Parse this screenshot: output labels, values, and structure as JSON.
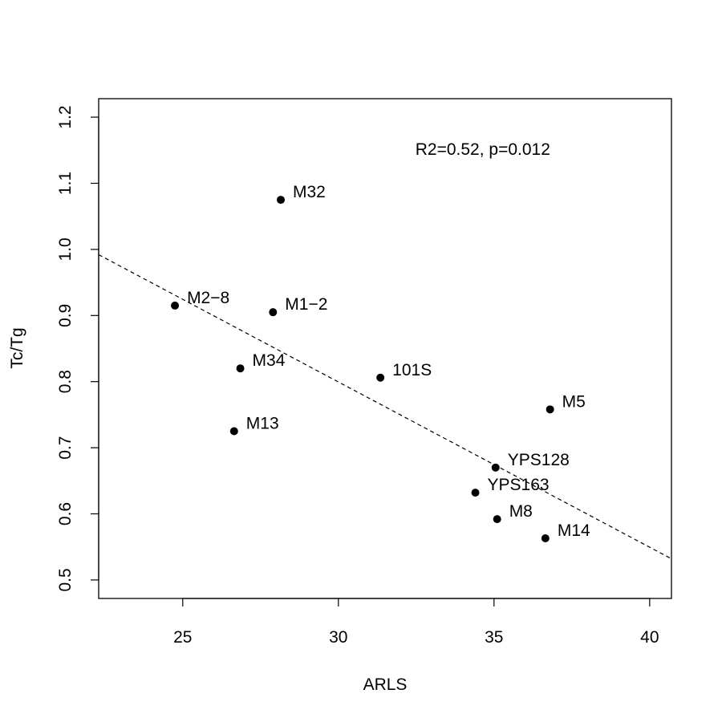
{
  "chart_data": {
    "type": "scatter",
    "title": "",
    "xlabel": "ARLS",
    "ylabel": "Tc/Tg",
    "xlim": [
      22.3,
      40.7
    ],
    "ylim": [
      0.472,
      1.228
    ],
    "xticks": [
      25,
      30,
      35,
      40
    ],
    "yticks": [
      0.5,
      0.6,
      0.7,
      0.8,
      0.9,
      1.0,
      1.1,
      1.2
    ],
    "ytick_labels": [
      "0.5",
      "0.6",
      "0.7",
      "0.8",
      "0.9",
      "1.0",
      "1.1",
      "1.2"
    ],
    "grid": false,
    "annotation": "R2=0.52, p=0.012",
    "annotation_pos": {
      "x": 35.0,
      "y": 1.155
    },
    "points": [
      {
        "label": "M32",
        "x": 28.15,
        "y": 1.075
      },
      {
        "label": "M2−8",
        "x": 24.75,
        "y": 0.915
      },
      {
        "label": "M1−2",
        "x": 27.9,
        "y": 0.905
      },
      {
        "label": "M34",
        "x": 26.85,
        "y": 0.82
      },
      {
        "label": "101S",
        "x": 31.35,
        "y": 0.806
      },
      {
        "label": "M5",
        "x": 36.8,
        "y": 0.758
      },
      {
        "label": "M13",
        "x": 26.65,
        "y": 0.725
      },
      {
        "label": "YPS128",
        "x": 35.05,
        "y": 0.67
      },
      {
        "label": "YPS163",
        "x": 34.4,
        "y": 0.632
      },
      {
        "label": "M8",
        "x": 35.1,
        "y": 0.592
      },
      {
        "label": "M14",
        "x": 36.65,
        "y": 0.563
      }
    ],
    "regression_line": {
      "x": [
        22.3,
        40.7
      ],
      "y": [
        0.992,
        0.532
      ],
      "style": "dashed"
    }
  }
}
